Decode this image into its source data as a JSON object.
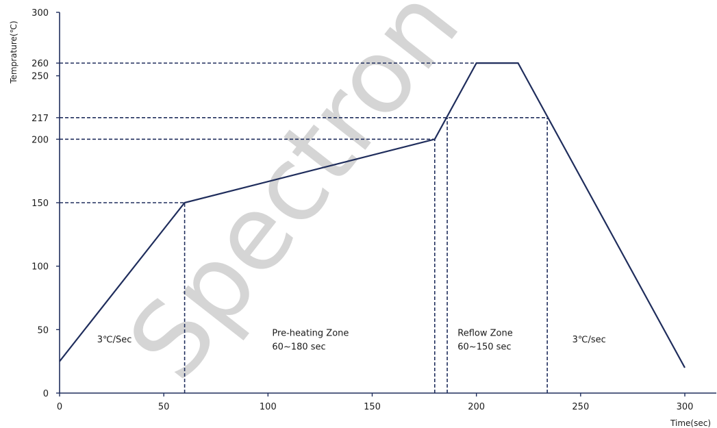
{
  "chart_data": {
    "type": "line",
    "ylabel": "Temprature(℃)",
    "xlabel": "Time(sec)",
    "xlim": [
      0,
      300
    ],
    "ylim": [
      0,
      300
    ],
    "x_ticks": [
      0,
      50,
      100,
      150,
      200,
      250,
      300
    ],
    "y_ticks": [
      0,
      50,
      100,
      150,
      200,
      217,
      250,
      260,
      300
    ],
    "series": [
      {
        "x": [
          0,
          60,
          180,
          200,
          220,
          300
        ],
        "y": [
          25,
          150,
          200,
          260,
          260,
          20
        ]
      }
    ],
    "reference_lines": {
      "horizontal": [
        {
          "y": 260,
          "x_to": 200
        },
        {
          "y": 217,
          "x_to": 234
        },
        {
          "y": 200,
          "x_to": 180
        },
        {
          "y": 150,
          "x_to": 60
        }
      ],
      "vertical": [
        {
          "x": 60,
          "y_to": 150
        },
        {
          "x": 180,
          "y_to": 200
        },
        {
          "x": 186,
          "y_to": 217
        },
        {
          "x": 234,
          "y_to": 217
        }
      ]
    },
    "annotations": [
      {
        "lines": [
          "3℃/Sec"
        ],
        "x": 18,
        "y": 40
      },
      {
        "lines": [
          "Pre-heating Zone",
          "60~180 sec"
        ],
        "x": 102,
        "y": 45
      },
      {
        "lines": [
          "Reflow Zone",
          "60~150 sec"
        ],
        "x": 191,
        "y": 45
      },
      {
        "lines": [
          "3℃/sec"
        ],
        "x": 246,
        "y": 40
      }
    ],
    "line_color": "#1f2d5c",
    "grid": false
  },
  "watermark": "Spectron"
}
